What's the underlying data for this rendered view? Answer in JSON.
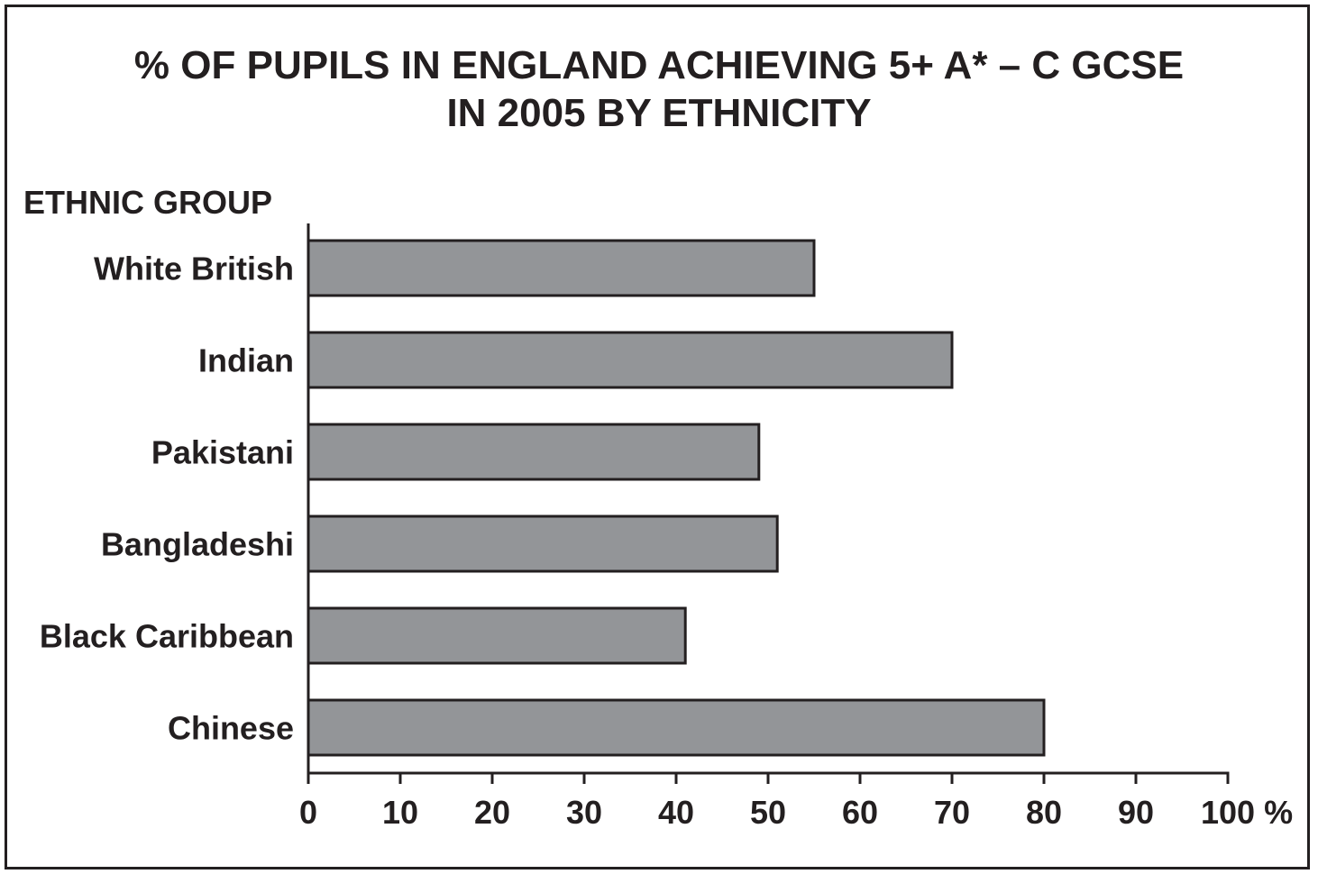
{
  "chart_data": {
    "type": "bar",
    "orientation": "horizontal",
    "title": "% OF PUPILS IN ENGLAND ACHIEVING 5+ A* – C GCSE IN 2005 BY ETHNICITY",
    "title_lines": [
      "% OF PUPILS IN ENGLAND ACHIEVING 5+ A* – C GCSE",
      "IN 2005 BY ETHNICITY"
    ],
    "ylabel": "ETHNIC GROUP",
    "xlabel": "",
    "x_unit": "%",
    "categories": [
      "White British",
      "Indian",
      "Pakistani",
      "Bangladeshi",
      "Black Caribbean",
      "Chinese"
    ],
    "values": [
      55,
      70,
      49,
      51,
      41,
      80
    ],
    "xlim": [
      0,
      100
    ],
    "xticks": [
      0,
      10,
      20,
      30,
      40,
      50,
      60,
      70,
      80,
      90,
      100
    ],
    "xtick_labels": [
      "0",
      "10",
      "20",
      "30",
      "40",
      "50",
      "60",
      "70",
      "80",
      "90",
      "100 %"
    ],
    "grid": false,
    "legend": "none",
    "colors": {
      "bar_fill": "#939598",
      "bar_stroke": "#231f20",
      "axis": "#231f20",
      "text": "#231f20",
      "background": "#ffffff"
    }
  }
}
